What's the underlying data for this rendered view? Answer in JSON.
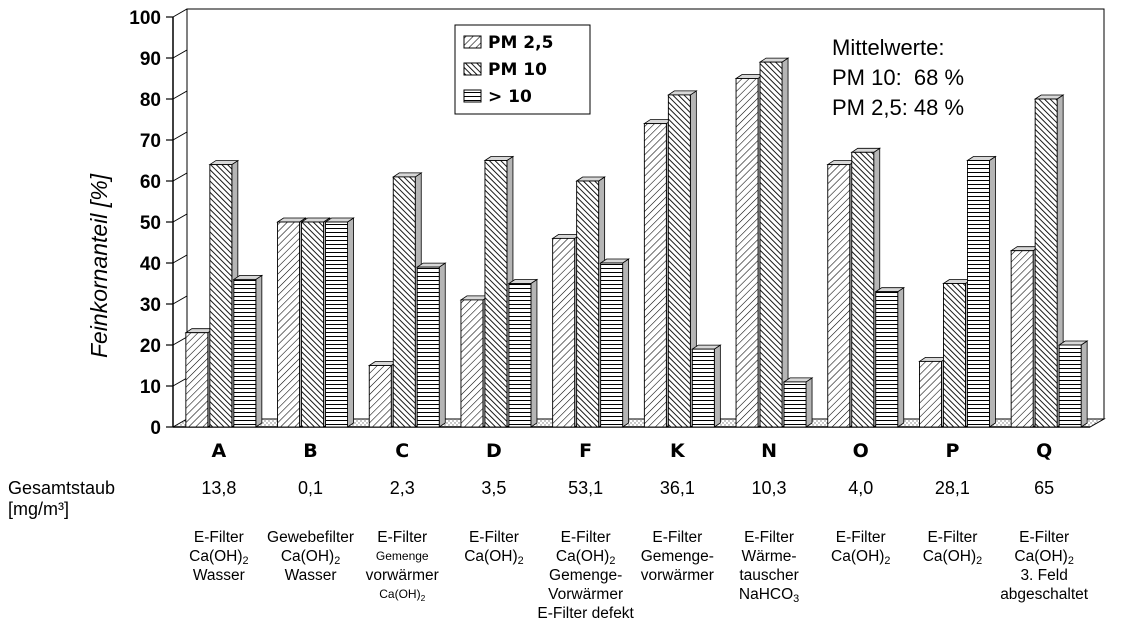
{
  "chart_data": {
    "type": "bar",
    "ylabel": "Feinkornanteil [%]",
    "ylim": [
      0,
      100
    ],
    "yticks": [
      "0",
      "10",
      "20",
      "30",
      "40",
      "50",
      "60",
      "70",
      "80",
      "90",
      "100"
    ],
    "grid": true,
    "legend_position": "top-center",
    "categories": [
      "A",
      "B",
      "C",
      "D",
      "F",
      "K",
      "N",
      "O",
      "P",
      "Q"
    ],
    "series": [
      {
        "name": "PM 2,5",
        "pattern": "diagonal-back",
        "values": [
          23,
          50,
          15,
          31,
          46,
          74,
          85,
          64,
          16,
          43
        ]
      },
      {
        "name": "PM 10",
        "pattern": "diagonal-forward-dense",
        "values": [
          64,
          50,
          61,
          65,
          60,
          81,
          89,
          67,
          35,
          80
        ]
      },
      {
        "name": "> 10",
        "pattern": "horizontal",
        "values": [
          36,
          50,
          39,
          35,
          40,
          19,
          11,
          33,
          65,
          20
        ]
      }
    ],
    "annotation": [
      "Mittelwerte:",
      "PM 10:  68 %",
      "PM 2,5: 48 %"
    ],
    "colors": {
      "bar_fill": "#ffffff",
      "hatch": "#000000",
      "side_shade": "#b5b5b5",
      "grid": "#000000"
    }
  },
  "below_axis": {
    "total_label": "Gesamtstaub",
    "unit_label": "[mg/m³]",
    "totals": [
      "13,8",
      "0,1",
      "2,3",
      "3,5",
      "53,1",
      "36,1",
      "10,3",
      "4,0",
      "28,1",
      "65"
    ],
    "descriptions": [
      [
        "E-Filter",
        "Ca(OH)₂",
        "Wasser"
      ],
      [
        "Gewebefilter",
        "Ca(OH)₂",
        "Wasser"
      ],
      [
        "E-Filter",
        "Gemenge",
        "vorwärmer",
        "Ca(OH)₂"
      ],
      [
        "E-Filter",
        "Ca(OH)₂"
      ],
      [
        "E-Filter",
        "Ca(OH)₂",
        "Gemenge-",
        "Vorwärmer",
        "E-Filter defekt"
      ],
      [
        "E-Filter",
        "Gemenge-",
        "vorwärmer"
      ],
      [
        "E-Filter",
        "Wärme-",
        "tauscher",
        "NaHCO₃"
      ],
      [
        "E-Filter",
        "Ca(OH)₂"
      ],
      [
        "E-Filter",
        "Ca(OH)₂"
      ],
      [
        "E-Filter",
        "Ca(OH)₂",
        "3. Feld",
        "abgeschaltet"
      ]
    ]
  }
}
